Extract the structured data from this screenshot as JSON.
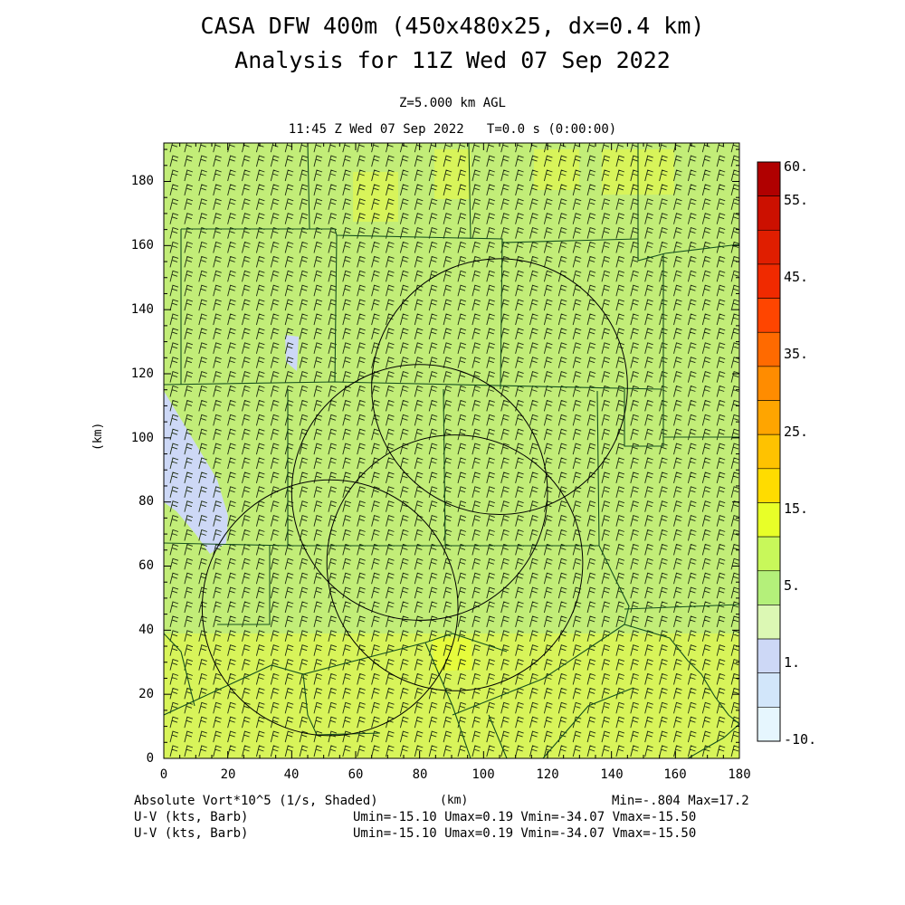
{
  "title_line1": "CASA DFW 400m (450x480x25, dx=0.4 km)",
  "title_line2": "Analysis for 11Z Wed 07 Sep 2022",
  "level": "Z=5.000 km AGL",
  "time_line": "11:45 Z Wed 07 Sep 2022   T=0.0 s (0:00:00)",
  "axes": {
    "x_ticks": [
      "0",
      "20",
      "40",
      "60",
      "80",
      "100",
      "120",
      "140",
      "160",
      "180"
    ],
    "y_ticks": [
      "0",
      "20",
      "40",
      "60",
      "80",
      "100",
      "120",
      "140",
      "160",
      "180"
    ],
    "x_label": "(km)",
    "y_label": "(km)",
    "x_range_km": [
      0,
      180
    ],
    "y_range_km": [
      0,
      192
    ]
  },
  "colorbar": {
    "labels": [
      "60.",
      "55.",
      "45.",
      "35.",
      "25.",
      "15.",
      "5.",
      "1.",
      "-10."
    ],
    "colors_top_to_bottom": [
      "#b00000",
      "#cc1000",
      "#e01e00",
      "#f02a00",
      "#ff4500",
      "#ff6a00",
      "#ff8c00",
      "#ffa500",
      "#ffc200",
      "#ffdc00",
      "#e8ff28",
      "#c8f85a",
      "#b4f07a",
      "#dcf8b4",
      "#cdd8f6",
      "#d2e6fa",
      "#e6f6fe"
    ]
  },
  "field_colors": {
    "base": "#c2ed78",
    "bright": "#d8f45a",
    "yellow": "#e6fb3c",
    "pale_blue": "#cdd8f6"
  },
  "footer": {
    "field_label": "Absolute Vort*10^5 (1/s, Shaded)",
    "xlabel": "(km)",
    "minmax": "Min=-.804 Max=17.2",
    "uv_label_1": "U-V (kts, Barb)",
    "uv_label_2": "U-V (kts, Barb)",
    "uv_stats_1": "Umin=-15.10 Umax=0.19 Vmin=-34.07 Vmax=-15.50",
    "uv_stats_2": "Umin=-15.10 Umax=0.19 Vmin=-34.07 Vmax=-15.50"
  },
  "radar_rings_km": [
    {
      "cx": 52,
      "cy": 47,
      "r": 40
    },
    {
      "cx": 80,
      "cy": 83,
      "r": 40
    },
    {
      "cx": 91,
      "cy": 61,
      "r": 40
    },
    {
      "cx": 105,
      "cy": 116,
      "r": 40
    }
  ]
}
